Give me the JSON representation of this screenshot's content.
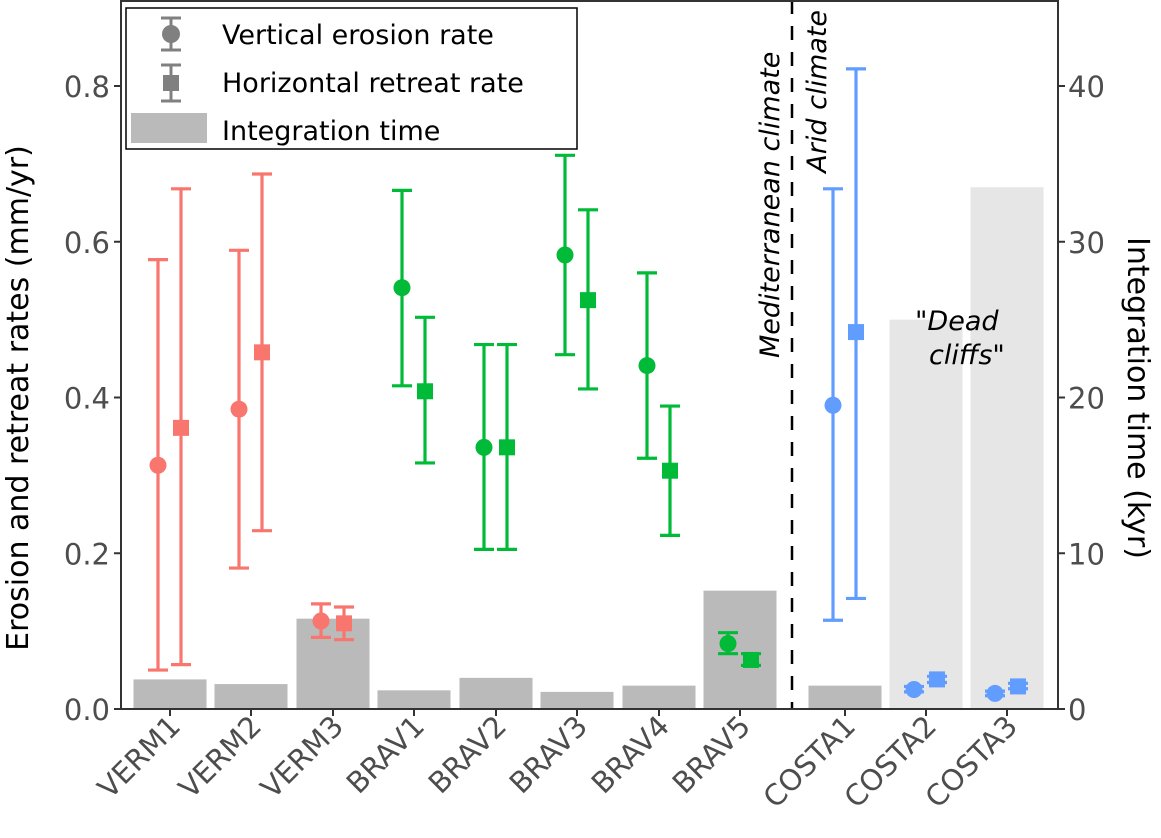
{
  "chart_data": {
    "type": "bar+errorbar",
    "title": "",
    "xlabel": "",
    "ylabel": "Erosion and retreat rates (mm/yr)",
    "y2label": "Integration time (kyr)",
    "ylim": [
      0,
      0.9
    ],
    "y2lim": [
      0,
      45
    ],
    "yticks": [
      "0.0",
      "0.2",
      "0.4",
      "0.6",
      "0.8"
    ],
    "y2ticks": [
      "0",
      "10",
      "20",
      "30",
      "40"
    ],
    "grid": false,
    "legend": {
      "placement": "top-left",
      "entries": [
        {
          "label": "Vertical erosion rate",
          "marker": "circle"
        },
        {
          "label": "Horizontal retreat rate",
          "marker": "square"
        },
        {
          "label": "Integration time",
          "marker": "bar"
        }
      ]
    },
    "categories": [
      "VERM1",
      "VERM2",
      "VERM3",
      "BRAV1",
      "BRAV2",
      "BRAV3",
      "BRAV4",
      "BRAV5",
      "COSTA1",
      "COSTA2",
      "COSTA3"
    ],
    "groups": [
      "VERM",
      "VERM",
      "VERM",
      "BRAV",
      "BRAV",
      "BRAV",
      "BRAV",
      "BRAV",
      "COSTA",
      "COSTA",
      "COSTA"
    ],
    "group_colors": {
      "VERM": "#f8766d",
      "BRAV": "#00ba38",
      "COSTA": "#619cff"
    },
    "bar_colors": {
      "normal": "#bababa",
      "dead_cliffs": "#e6e6e6"
    },
    "series": [
      {
        "name": "Vertical erosion rate",
        "unit": "mm/yr",
        "values": [
          0.313,
          0.385,
          0.113,
          0.541,
          0.336,
          0.583,
          0.441,
          0.084,
          0.39,
          0.025,
          0.02
        ],
        "lower": [
          0.05,
          0.181,
          0.092,
          0.415,
          0.205,
          0.455,
          0.322,
          0.071,
          0.114,
          0.022,
          0.017
        ],
        "upper": [
          0.577,
          0.589,
          0.135,
          0.666,
          0.468,
          0.711,
          0.56,
          0.098,
          0.668,
          0.029,
          0.023
        ]
      },
      {
        "name": "Horizontal retreat rate",
        "unit": "mm/yr",
        "values": [
          0.361,
          0.458,
          0.11,
          0.408,
          0.336,
          0.525,
          0.306,
          0.063,
          0.484,
          0.038,
          0.029
        ],
        "lower": [
          0.057,
          0.229,
          0.089,
          0.316,
          0.205,
          0.411,
          0.223,
          0.056,
          0.142,
          0.034,
          0.026
        ],
        "upper": [
          0.668,
          0.687,
          0.131,
          0.503,
          0.468,
          0.641,
          0.389,
          0.071,
          0.822,
          0.042,
          0.033
        ]
      },
      {
        "name": "Integration time",
        "unit": "kyr",
        "axis": "right",
        "values": [
          1.9,
          1.6,
          5.8,
          1.2,
          2.0,
          1.1,
          1.5,
          7.6,
          1.5,
          25.0,
          33.5
        ],
        "dead_cliffs": [
          false,
          false,
          false,
          false,
          false,
          false,
          false,
          false,
          false,
          true,
          true
        ]
      }
    ],
    "annotations": [
      {
        "text": "Mediterranean climate",
        "type": "divider-label-left"
      },
      {
        "text": "Arid climate",
        "type": "divider-label-right"
      },
      {
        "text": "\"Dead",
        "type": "note"
      },
      {
        "text": "cliffs\"",
        "type": "note"
      }
    ],
    "divider_after_category": "BRAV5"
  }
}
